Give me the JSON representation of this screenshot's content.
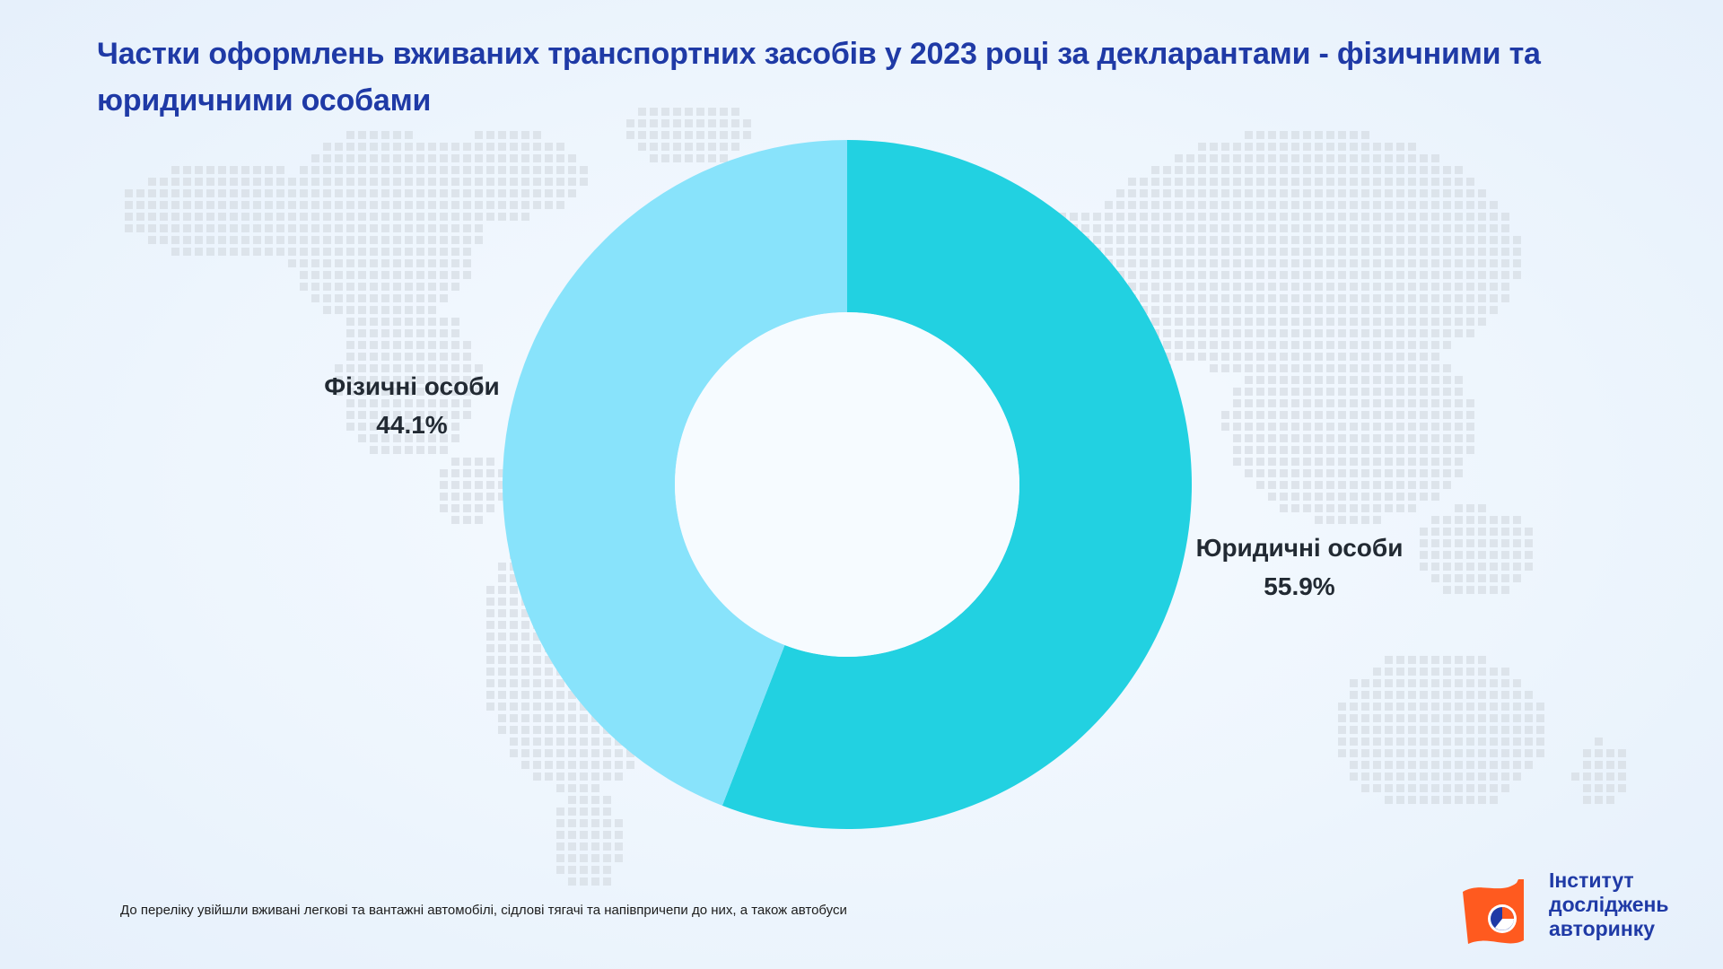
{
  "title": "Частки оформлень вживаних транспортних засобів у 2023 році за декларантами - фізичними та юридичними особами",
  "footnote": "До переліку увійшли вживані легкові та вантажні автомобілі, сідлові тягачі та напівпричепи до них, а також автобуси",
  "logo": {
    "line1": "Інститут",
    "line2": "досліджень",
    "line3": "авторинку",
    "orange": "#ff5a1f",
    "blue": "#1f3aa6"
  },
  "chart_data": {
    "type": "pie",
    "subtype": "donut",
    "title": "Частки оформлень вживаних транспортних засобів у 2023 році за декларантами - фізичними та юридичними особами",
    "series": [
      {
        "name": "Юридичні особи",
        "value": 55.9,
        "label": "55.9%",
        "color": "#22d1e1"
      },
      {
        "name": "Фізичні особи",
        "value": 44.1,
        "label": "44.1%",
        "color": "#88e3fb"
      }
    ],
    "start": "12 o'clock",
    "direction": "clockwise",
    "legend": "none"
  },
  "colors": {
    "title": "#1f3aa6",
    "background": "#eef5fd",
    "map_dots": "#d7dde4"
  }
}
